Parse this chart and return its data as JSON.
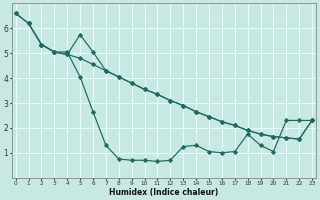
{
  "xlabel": "Humidex (Indice chaleur)",
  "bg_color": "#c8e8e4",
  "grid_color": "#e8ffff",
  "line_color": "#1a6b5a",
  "xlim": [
    -0.3,
    23.3
  ],
  "ylim": [
    0,
    7
  ],
  "xticks": [
    0,
    1,
    2,
    3,
    4,
    5,
    6,
    7,
    8,
    9,
    10,
    11,
    12,
    13,
    14,
    15,
    16,
    17,
    18,
    19,
    20,
    21,
    22,
    23
  ],
  "yticks": [
    1,
    2,
    3,
    4,
    5,
    6
  ],
  "curve_diag_x": [
    0,
    1,
    2,
    3,
    4,
    5,
    6,
    7,
    8,
    9,
    10,
    11,
    12,
    13,
    14,
    15,
    16,
    17,
    18,
    19,
    20,
    21,
    22,
    23
  ],
  "curve_diag_y": [
    6.6,
    6.2,
    5.35,
    5.05,
    4.95,
    4.8,
    4.55,
    4.3,
    4.05,
    3.8,
    3.55,
    3.35,
    3.1,
    2.9,
    2.65,
    2.45,
    2.25,
    2.1,
    1.9,
    1.75,
    1.65,
    1.6,
    1.55,
    2.3
  ],
  "curve_v_x": [
    0,
    1,
    2,
    3,
    4,
    5,
    6,
    7,
    8,
    9,
    10,
    11,
    12,
    13,
    14,
    15,
    16,
    17,
    18,
    19,
    20,
    21,
    22,
    23
  ],
  "curve_v_y": [
    6.6,
    6.2,
    5.35,
    5.05,
    5.05,
    4.05,
    2.65,
    1.3,
    0.75,
    0.7,
    0.7,
    0.65,
    0.7,
    1.25,
    1.3,
    1.05,
    1.0,
    1.05,
    1.75,
    1.3,
    1.05,
    2.3,
    2.3,
    2.3
  ],
  "curve_mid_x": [
    1,
    2,
    3,
    4,
    5,
    6,
    7,
    8,
    9,
    10,
    11,
    12,
    13,
    14,
    15,
    16,
    17,
    18,
    19,
    20,
    21,
    22,
    23
  ],
  "curve_mid_y": [
    6.2,
    5.35,
    5.05,
    4.95,
    5.75,
    5.05,
    4.3,
    4.05,
    3.8,
    3.55,
    3.35,
    3.1,
    2.9,
    2.65,
    2.45,
    2.25,
    2.1,
    1.9,
    1.75,
    1.65,
    1.6,
    1.55,
    2.3
  ]
}
